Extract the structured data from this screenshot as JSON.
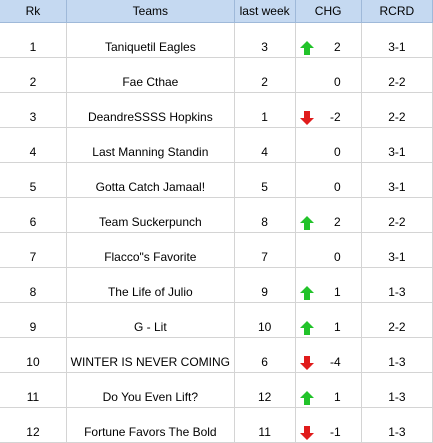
{
  "headers": {
    "rank": "Rk",
    "team": "Teams",
    "last_week": "last week",
    "change": "CHG",
    "record": "RCRD"
  },
  "colors": {
    "header_bg": "#c5d9f1",
    "up_arrow": "#22c32a",
    "down_arrow": "#e01b1b",
    "grid": "#d4d4d4"
  },
  "rows": [
    {
      "rank": "1",
      "team": "Taniquetil Eagles",
      "last_week": "3",
      "change": "2",
      "trend": "up",
      "record": "3-1"
    },
    {
      "rank": "2",
      "team": "Fae Cthae",
      "last_week": "2",
      "change": "0",
      "trend": "none",
      "record": "2-2"
    },
    {
      "rank": "3",
      "team": "DeandreSSSS Hopkins",
      "last_week": "1",
      "change": "-2",
      "trend": "down",
      "record": "2-2"
    },
    {
      "rank": "4",
      "team": "Last Manning Standin",
      "last_week": "4",
      "change": "0",
      "trend": "none",
      "record": "3-1"
    },
    {
      "rank": "5",
      "team": "Gotta Catch Jamaal!",
      "last_week": "5",
      "change": "0",
      "trend": "none",
      "record": "3-1"
    },
    {
      "rank": "6",
      "team": "Team  Suckerpunch",
      "last_week": "8",
      "change": "2",
      "trend": "up",
      "record": "2-2"
    },
    {
      "rank": "7",
      "team": "Flacco\"s  Favorite",
      "last_week": "7",
      "change": "0",
      "trend": "none",
      "record": "3-1"
    },
    {
      "rank": "8",
      "team": "The Life of Julio",
      "last_week": "9",
      "change": "1",
      "trend": "up",
      "record": "1-3"
    },
    {
      "rank": "9",
      "team": "G - Lit",
      "last_week": "10",
      "change": "1",
      "trend": "up",
      "record": "2-2"
    },
    {
      "rank": "10",
      "team": "WINTER IS NEVER COMING",
      "last_week": "6",
      "change": "-4",
      "trend": "down",
      "record": "1-3"
    },
    {
      "rank": "11",
      "team": "Do You Even Lift?",
      "last_week": "12",
      "change": "1",
      "trend": "up",
      "record": "1-3"
    },
    {
      "rank": "12",
      "team": "Fortune Favors The Bold",
      "last_week": "11",
      "change": "-1",
      "trend": "down",
      "record": "1-3"
    }
  ]
}
